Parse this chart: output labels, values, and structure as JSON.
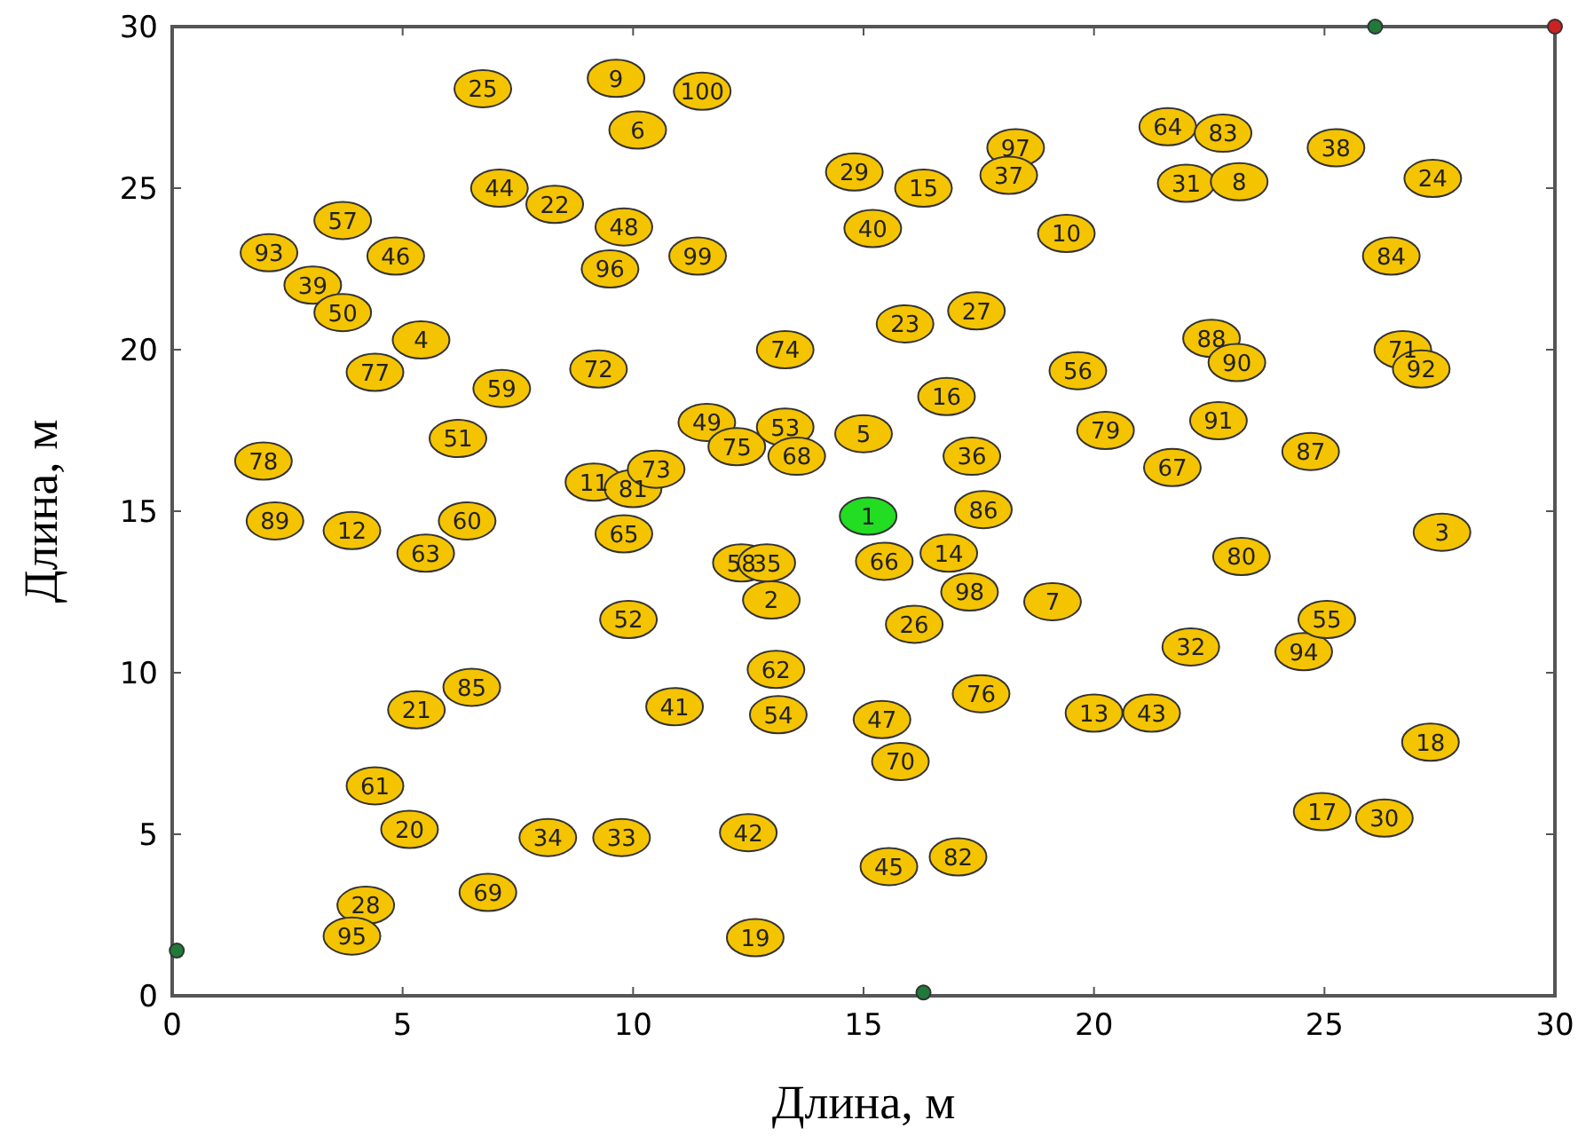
{
  "chart_data": {
    "type": "scatter",
    "xlabel": "Длина, м",
    "ylabel": "Длина, м",
    "xlim": [
      0,
      30
    ],
    "ylim": [
      0,
      30
    ],
    "xticks": [
      0,
      5,
      10,
      15,
      20,
      25,
      30
    ],
    "yticks": [
      0,
      5,
      10,
      15,
      20,
      25,
      30
    ],
    "grid": false,
    "marker": "circle",
    "series": [
      {
        "color": "#f5c400",
        "x": [
          6.74,
          9.63,
          11.5,
          10.1,
          7.1,
          8.3,
          3.7,
          9.8,
          2.1,
          4.85,
          11.4,
          9.5,
          3.05,
          3.7,
          5.4,
          4.4,
          7.15,
          9.25,
          13.3,
          6.2,
          11.6,
          12.25,
          13.3,
          13.55,
          15.0,
          1.98,
          9.15,
          10.0,
          10.5,
          2.23,
          3.9,
          6.4,
          5.5,
          9.8,
          12.35,
          12.9,
          13.0,
          15.45,
          16.85,
          17.3,
          16.1,
          19.1,
          9.9,
          13.1,
          10.9,
          13.15,
          6.5,
          5.3,
          15.4,
          17.55,
          20.0,
          21.25,
          22.1,
          24.55,
          25.05,
          23.2,
          27.55,
          27.3,
          24.95,
          26.3,
          15.8,
          15.55,
          17.05,
          4.4,
          5.15,
          8.15,
          9.75,
          12.5,
          6.85,
          4.2,
          3.9,
          12.65,
          14.8,
          16.3,
          15.2,
          18.3,
          18.15,
          19.4,
          15.9,
          17.45,
          21.6,
          22.8,
          22.0,
          23.15,
          25.25,
          27.35,
          26.45,
          22.55,
          23.1,
          26.7,
          27.1,
          19.65,
          16.8,
          20.25,
          22.7,
          21.7,
          24.7,
          17.35,
          17.6
        ],
        "values": [
          28.08,
          28.4,
          28.0,
          26.8,
          25.0,
          24.5,
          24.0,
          23.8,
          23.0,
          22.9,
          22.9,
          22.5,
          22.0,
          21.15,
          20.3,
          19.3,
          18.8,
          19.4,
          20.0,
          17.25,
          17.75,
          17.0,
          17.6,
          16.7,
          17.4,
          16.55,
          15.9,
          15.7,
          16.3,
          14.7,
          14.4,
          14.7,
          13.7,
          14.3,
          13.4,
          13.4,
          12.25,
          13.45,
          13.7,
          12.5,
          11.5,
          12.2,
          11.65,
          10.1,
          8.95,
          8.7,
          9.55,
          8.85,
          8.55,
          9.35,
          8.75,
          8.75,
          10.8,
          10.65,
          11.65,
          13.6,
          14.35,
          7.85,
          5.7,
          5.5,
          7.25,
          4.0,
          4.3,
          6.5,
          5.15,
          4.9,
          4.9,
          5.05,
          3.2,
          2.8,
          1.85,
          1.8,
          25.5,
          25.0,
          23.75,
          26.25,
          25.4,
          23.6,
          20.8,
          21.2,
          26.9,
          26.7,
          25.15,
          25.2,
          26.25,
          25.3,
          22.9,
          20.35,
          19.6,
          20.0,
          19.4,
          19.35,
          18.55,
          17.5,
          17.8,
          16.35,
          16.85,
          16.7,
          15.05
        ]
      },
      {
        "color": "#22dd22",
        "x": [
          15.1
        ],
        "values": [
          14.85
        ]
      },
      {
        "colors": [
          "#1f7a3a",
          "#1f7a3a",
          "#1f7a3a",
          "#cc2222"
        ],
        "x": [
          0.1,
          26.1,
          16.3,
          30
        ],
        "values": [
          1.4,
          30,
          0.1,
          30
        ]
      }
    ],
    "annotations": [
      {
        "text": "25",
        "x": 6.74,
        "y": 28.08
      },
      {
        "text": "9",
        "x": 9.63,
        "y": 28.4
      },
      {
        "text": "100",
        "x": 11.5,
        "y": 28.0
      },
      {
        "text": "6",
        "x": 10.1,
        "y": 26.8
      },
      {
        "text": "44",
        "x": 7.1,
        "y": 25.0
      },
      {
        "text": "22",
        "x": 8.3,
        "y": 24.5
      },
      {
        "text": "57",
        "x": 3.7,
        "y": 24.0
      },
      {
        "text": "48",
        "x": 9.8,
        "y": 23.8
      },
      {
        "text": "93",
        "x": 2.1,
        "y": 23.0
      },
      {
        "text": "46",
        "x": 4.85,
        "y": 22.9
      },
      {
        "text": "99",
        "x": 11.4,
        "y": 22.9
      },
      {
        "text": "96",
        "x": 9.5,
        "y": 22.5
      },
      {
        "text": "39",
        "x": 3.05,
        "y": 22.0
      },
      {
        "text": "50",
        "x": 3.7,
        "y": 21.15
      },
      {
        "text": "4",
        "x": 5.4,
        "y": 20.3
      },
      {
        "text": "77",
        "x": 4.4,
        "y": 19.3
      },
      {
        "text": "59",
        "x": 7.15,
        "y": 18.8
      },
      {
        "text": "72",
        "x": 9.25,
        "y": 19.4
      },
      {
        "text": "74",
        "x": 13.3,
        "y": 20.0
      },
      {
        "text": "51",
        "x": 6.2,
        "y": 17.25
      },
      {
        "text": "49",
        "x": 11.6,
        "y": 17.75
      },
      {
        "text": "75",
        "x": 12.25,
        "y": 17.0
      },
      {
        "text": "53",
        "x": 13.3,
        "y": 17.6
      },
      {
        "text": "68",
        "x": 13.55,
        "y": 16.7
      },
      {
        "text": "5",
        "x": 15.0,
        "y": 17.4
      },
      {
        "text": "78",
        "x": 1.98,
        "y": 16.55
      },
      {
        "text": "11",
        "x": 9.15,
        "y": 15.9
      },
      {
        "text": "81",
        "x": 10.0,
        "y": 15.7
      },
      {
        "text": "73",
        "x": 10.5,
        "y": 16.3
      },
      {
        "text": "89",
        "x": 2.23,
        "y": 14.7
      },
      {
        "text": "12",
        "x": 3.9,
        "y": 14.4
      },
      {
        "text": "60",
        "x": 6.4,
        "y": 14.7
      },
      {
        "text": "63",
        "x": 5.5,
        "y": 13.7
      },
      {
        "text": "65",
        "x": 9.8,
        "y": 14.3
      },
      {
        "text": "58",
        "x": 12.35,
        "y": 13.4
      },
      {
        "text": "35",
        "x": 12.9,
        "y": 13.4
      },
      {
        "text": "2",
        "x": 13.0,
        "y": 12.25
      },
      {
        "text": "66",
        "x": 15.45,
        "y": 13.45
      },
      {
        "text": "14",
        "x": 16.85,
        "y": 13.7
      },
      {
        "text": "98",
        "x": 17.3,
        "y": 12.5
      },
      {
        "text": "26",
        "x": 16.1,
        "y": 11.5
      },
      {
        "text": "7",
        "x": 19.1,
        "y": 12.2
      },
      {
        "text": "52",
        "x": 9.9,
        "y": 11.65
      },
      {
        "text": "62",
        "x": 13.1,
        "y": 10.1
      },
      {
        "text": "41",
        "x": 10.9,
        "y": 8.95
      },
      {
        "text": "54",
        "x": 13.15,
        "y": 8.7
      },
      {
        "text": "85",
        "x": 6.5,
        "y": 9.55
      },
      {
        "text": "21",
        "x": 5.3,
        "y": 8.85
      },
      {
        "text": "47",
        "x": 15.4,
        "y": 8.55
      },
      {
        "text": "76",
        "x": 17.55,
        "y": 9.35
      },
      {
        "text": "13",
        "x": 20.0,
        "y": 8.75
      },
      {
        "text": "43",
        "x": 21.25,
        "y": 8.75
      },
      {
        "text": "32",
        "x": 22.1,
        "y": 10.8
      },
      {
        "text": "94",
        "x": 24.55,
        "y": 10.65
      },
      {
        "text": "55",
        "x": 25.05,
        "y": 11.65
      },
      {
        "text": "80",
        "x": 23.2,
        "y": 13.6
      },
      {
        "text": "3",
        "x": 27.55,
        "y": 14.35
      },
      {
        "text": "18",
        "x": 27.3,
        "y": 7.85
      },
      {
        "text": "17",
        "x": 24.95,
        "y": 5.7
      },
      {
        "text": "30",
        "x": 26.3,
        "y": 5.5
      },
      {
        "text": "70",
        "x": 15.8,
        "y": 7.25
      },
      {
        "text": "45",
        "x": 15.55,
        "y": 4.0
      },
      {
        "text": "82",
        "x": 17.05,
        "y": 4.3
      },
      {
        "text": "61",
        "x": 4.4,
        "y": 6.5
      },
      {
        "text": "20",
        "x": 5.15,
        "y": 5.15
      },
      {
        "text": "34",
        "x": 8.15,
        "y": 4.9
      },
      {
        "text": "33",
        "x": 9.75,
        "y": 4.9
      },
      {
        "text": "42",
        "x": 12.5,
        "y": 5.05
      },
      {
        "text": "69",
        "x": 6.85,
        "y": 3.2
      },
      {
        "text": "28",
        "x": 4.2,
        "y": 2.8
      },
      {
        "text": "95",
        "x": 3.9,
        "y": 1.85
      },
      {
        "text": "19",
        "x": 12.65,
        "y": 1.8
      },
      {
        "text": "29",
        "x": 14.8,
        "y": 25.5
      },
      {
        "text": "15",
        "x": 16.3,
        "y": 25.0
      },
      {
        "text": "40",
        "x": 15.2,
        "y": 23.75
      },
      {
        "text": "97",
        "x": 18.3,
        "y": 26.25
      },
      {
        "text": "37",
        "x": 18.15,
        "y": 25.4
      },
      {
        "text": "10",
        "x": 19.4,
        "y": 23.6
      },
      {
        "text": "23",
        "x": 15.9,
        "y": 20.8
      },
      {
        "text": "27",
        "x": 17.45,
        "y": 21.2
      },
      {
        "text": "64",
        "x": 21.6,
        "y": 26.9
      },
      {
        "text": "83",
        "x": 22.8,
        "y": 26.7
      },
      {
        "text": "31",
        "x": 22.0,
        "y": 25.15
      },
      {
        "text": "8",
        "x": 23.15,
        "y": 25.2
      },
      {
        "text": "38",
        "x": 25.25,
        "y": 26.25
      },
      {
        "text": "24",
        "x": 27.35,
        "y": 25.3
      },
      {
        "text": "84",
        "x": 26.45,
        "y": 22.9
      },
      {
        "text": "88",
        "x": 22.55,
        "y": 20.35
      },
      {
        "text": "90",
        "x": 23.1,
        "y": 19.6
      },
      {
        "text": "71",
        "x": 26.7,
        "y": 20.0
      },
      {
        "text": "92",
        "x": 27.1,
        "y": 19.4
      },
      {
        "text": "56",
        "x": 19.65,
        "y": 19.35
      },
      {
        "text": "16",
        "x": 16.8,
        "y": 18.55
      },
      {
        "text": "79",
        "x": 20.25,
        "y": 17.5
      },
      {
        "text": "91",
        "x": 22.7,
        "y": 17.8
      },
      {
        "text": "67",
        "x": 21.7,
        "y": 16.35
      },
      {
        "text": "87",
        "x": 24.7,
        "y": 16.85
      },
      {
        "text": "36",
        "x": 17.35,
        "y": 16.7
      },
      {
        "text": "86",
        "x": 17.6,
        "y": 15.05
      },
      {
        "text": "1",
        "x": 15.1,
        "y": 14.85
      }
    ]
  }
}
